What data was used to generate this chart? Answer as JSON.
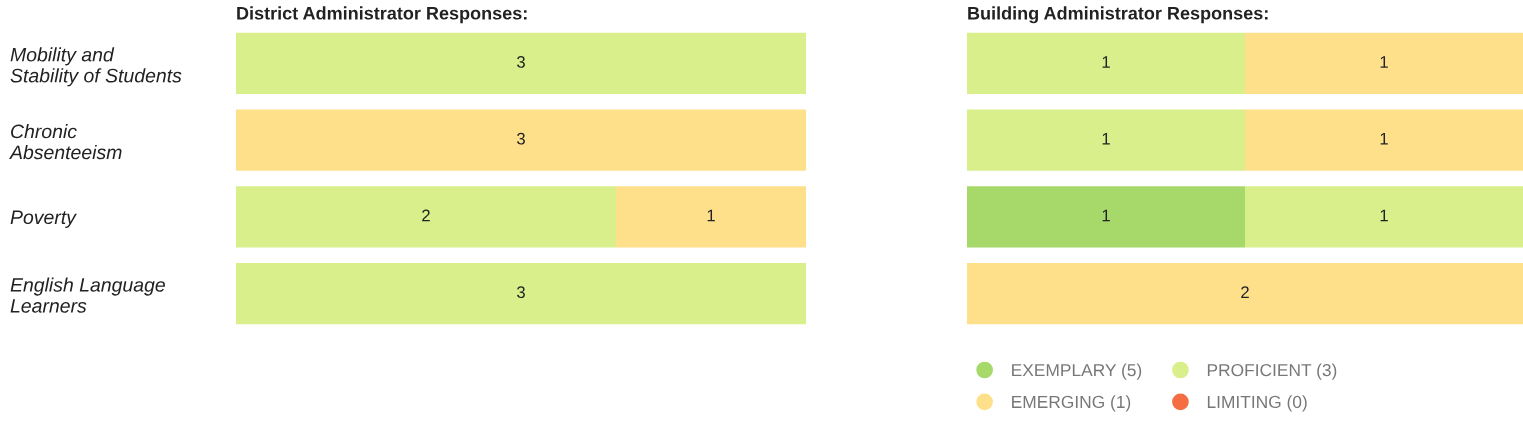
{
  "chart_data": [
    {
      "type": "bar",
      "orientation": "horizontal",
      "stacked": true,
      "title": "District Administrator Responses:",
      "categories": [
        "Mobility and\nStability of Students",
        "Chronic\nAbsenteeism",
        "Poverty",
        "English Language\nLearners"
      ],
      "xlim": [
        0,
        3
      ],
      "data_labels": true,
      "series": [
        {
          "color": "#d9ef8b",
          "values": [
            3,
            null,
            2,
            3
          ]
        },
        {
          "color": "#fee08b",
          "values": [
            null,
            3,
            1,
            null
          ]
        }
      ]
    },
    {
      "type": "bar",
      "orientation": "horizontal",
      "stacked": true,
      "title": "Building Administrator Responses:",
      "categories": [
        null,
        null,
        null,
        null
      ],
      "xlim": [
        0,
        2
      ],
      "data_labels": true,
      "legend": "bottom",
      "series": [
        {
          "name": "EXEMPLARY (5)",
          "color": "#a6d96a",
          "values": [
            null,
            null,
            1,
            null
          ]
        },
        {
          "name": "PROFICIENT (3)",
          "color": "#d9ef8b",
          "values": [
            1,
            1,
            1,
            null
          ]
        },
        {
          "name": "EMERGING (1)",
          "color": "#fee08b",
          "values": [
            1,
            1,
            null,
            2
          ]
        },
        {
          "name": "LIMITING (0)",
          "color": "#f46d43",
          "values": [
            null,
            null,
            null,
            null
          ]
        }
      ]
    }
  ]
}
